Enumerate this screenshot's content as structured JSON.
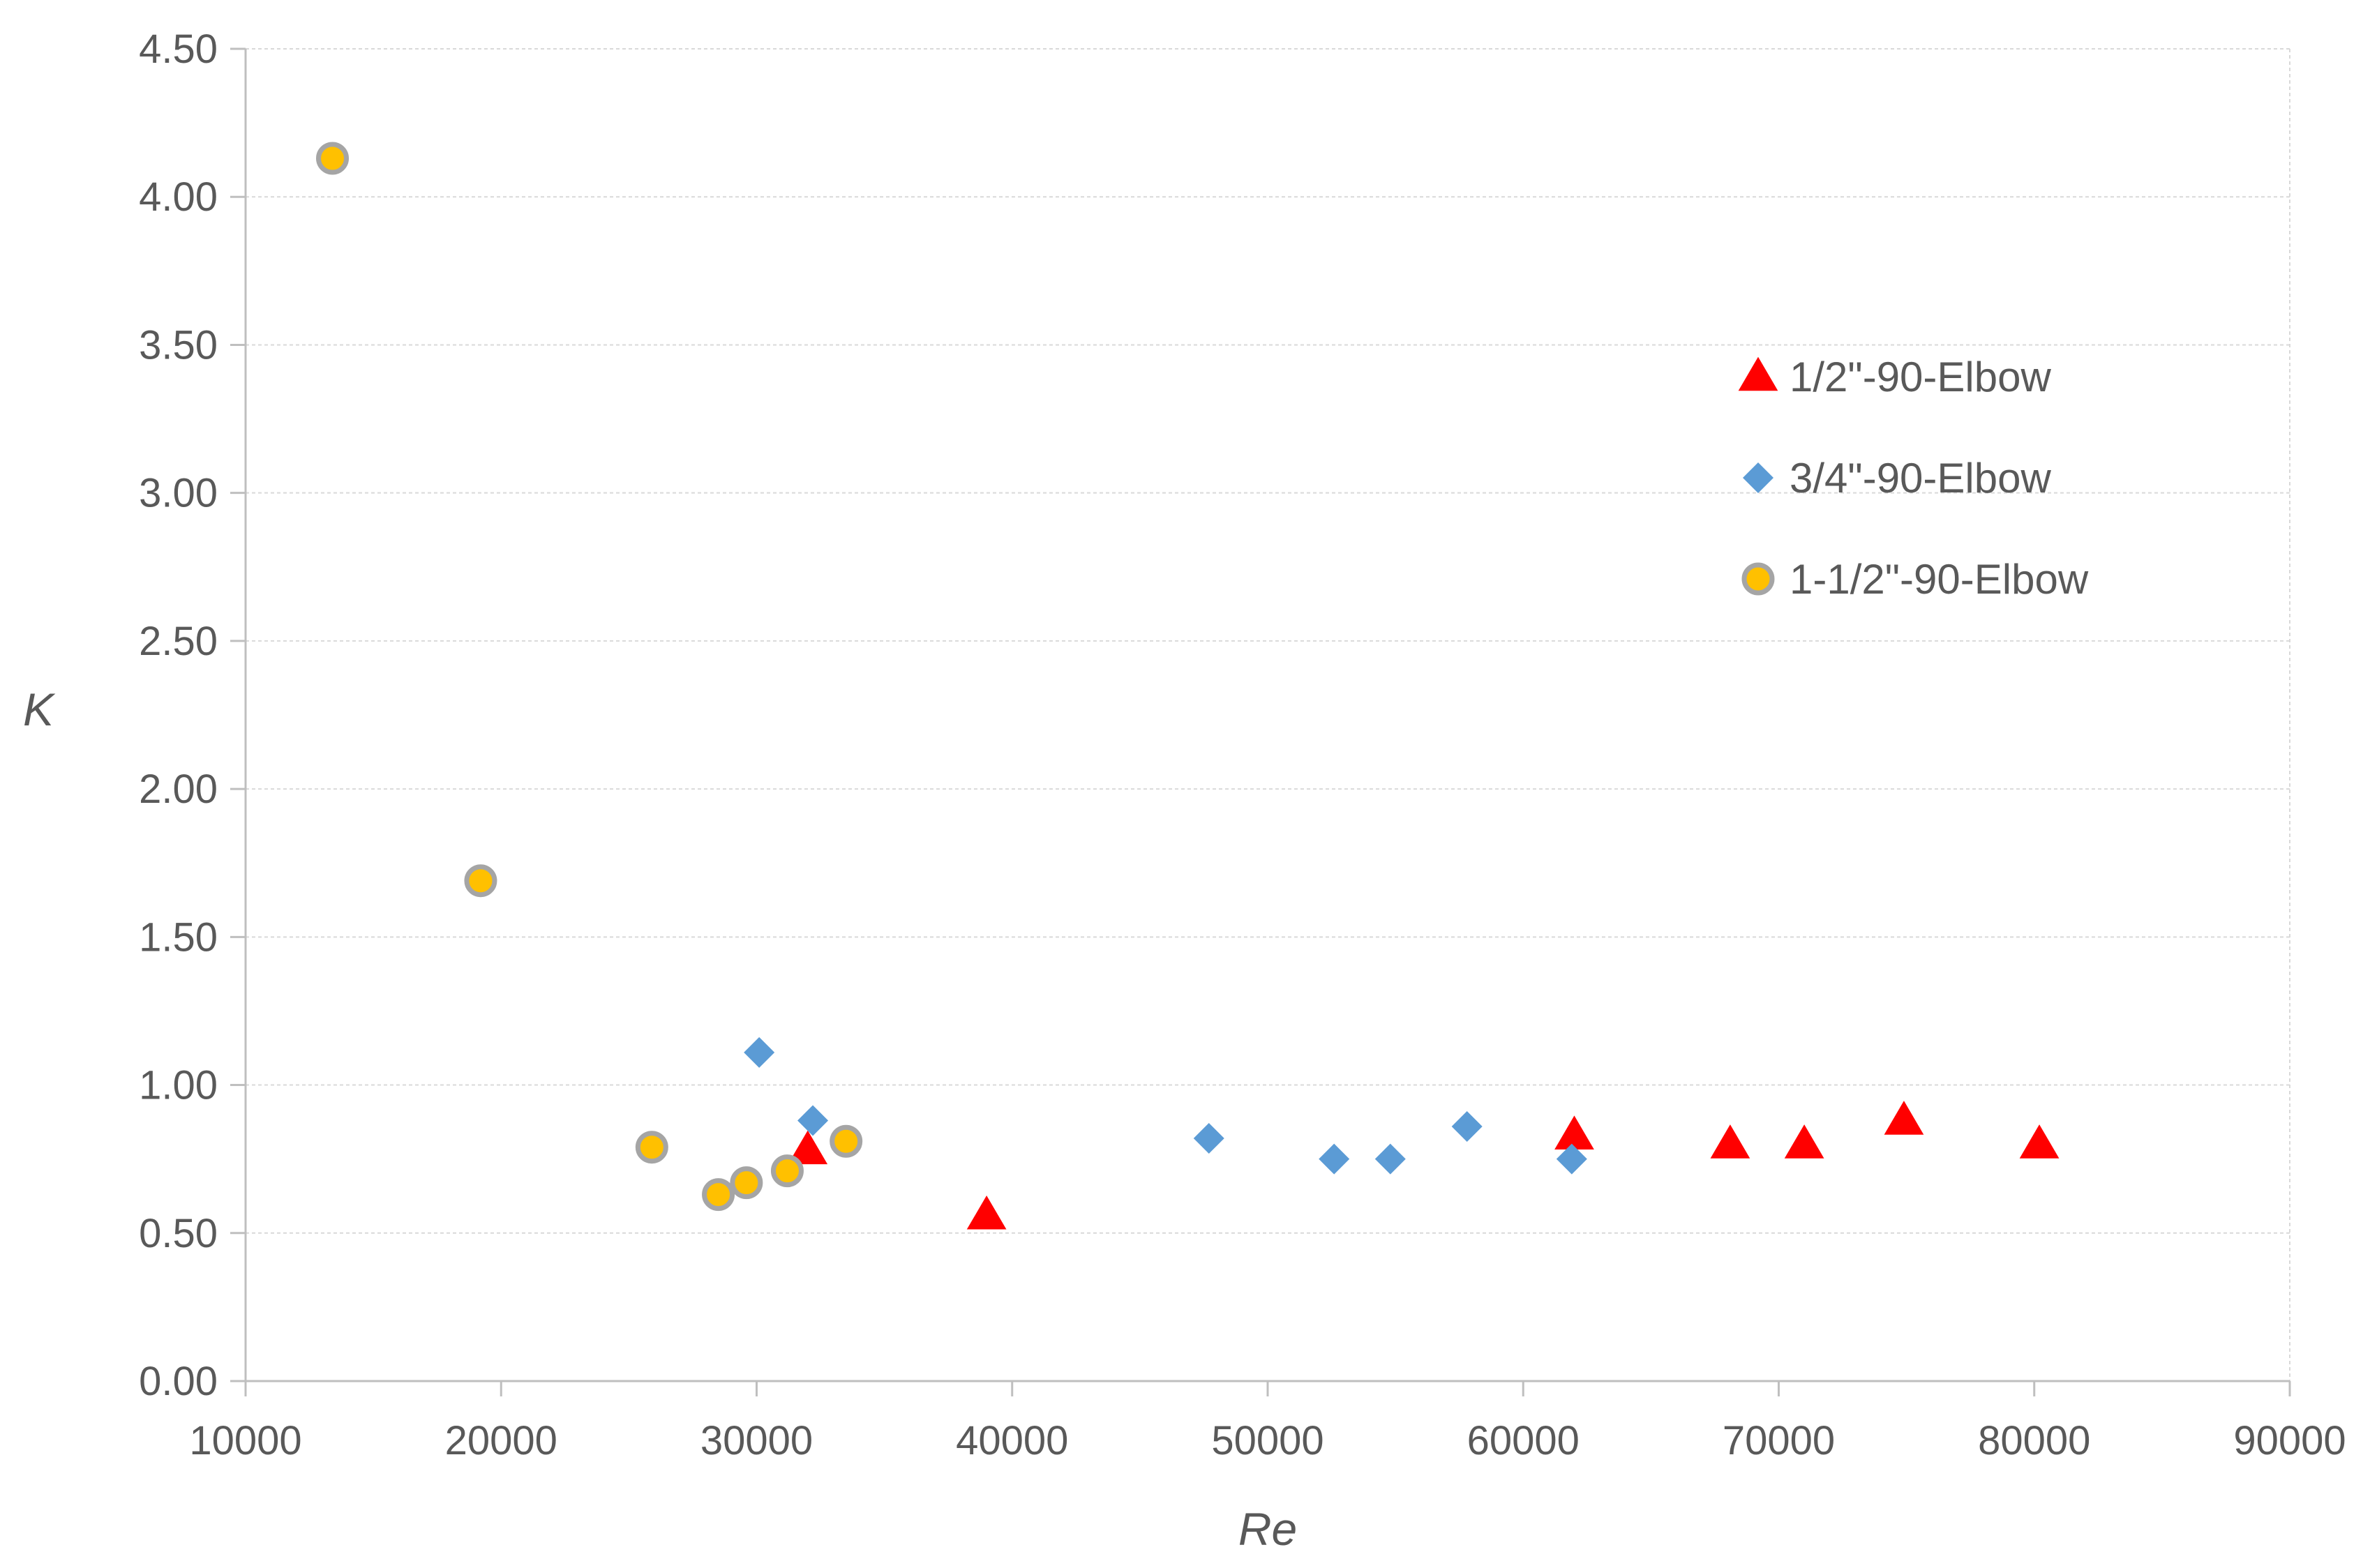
{
  "chart_data": {
    "type": "scatter",
    "title": "",
    "xlabel": "Re",
    "ylabel": "K",
    "xlim": [
      10000,
      90000
    ],
    "ylim": [
      0,
      4.5
    ],
    "x_ticks": [
      "10000",
      "20000",
      "30000",
      "40000",
      "50000",
      "60000",
      "70000",
      "80000",
      "90000"
    ],
    "y_ticks": [
      "0.00",
      "0.50",
      "1.00",
      "1.50",
      "2.00",
      "2.50",
      "3.00",
      "3.50",
      "4.00",
      "4.50"
    ],
    "x_tick_values": [
      10000,
      20000,
      30000,
      40000,
      50000,
      60000,
      70000,
      80000,
      90000
    ],
    "y_tick_values": [
      0,
      0.5,
      1.0,
      1.5,
      2.0,
      2.5,
      3.0,
      3.5,
      4.0,
      4.5
    ],
    "grid": "horizontal",
    "legend_position": "right",
    "series": [
      {
        "name": "1/2\"-90-Elbow",
        "marker": "triangle",
        "color": "#ff0000",
        "points": [
          {
            "x": 32000,
            "y": 0.78
          },
          {
            "x": 39000,
            "y": 0.56
          },
          {
            "x": 62000,
            "y": 0.83
          },
          {
            "x": 68100,
            "y": 0.8
          },
          {
            "x": 71000,
            "y": 0.8
          },
          {
            "x": 74900,
            "y": 0.88
          },
          {
            "x": 80200,
            "y": 0.8
          }
        ]
      },
      {
        "name": "3/4\"-90-Elbow",
        "marker": "diamond",
        "color": "#5b9bd5",
        "points": [
          {
            "x": 30100,
            "y": 1.11
          },
          {
            "x": 32200,
            "y": 0.88
          },
          {
            "x": 47700,
            "y": 0.82
          },
          {
            "x": 52600,
            "y": 0.75
          },
          {
            "x": 54800,
            "y": 0.75
          },
          {
            "x": 57800,
            "y": 0.86
          },
          {
            "x": 61900,
            "y": 0.75
          }
        ]
      },
      {
        "name": "1-1/2\"-90-Elbow",
        "marker": "circle",
        "color": "#ffc000",
        "stroke": "#a5a5a5",
        "points": [
          {
            "x": 13400,
            "y": 4.13
          },
          {
            "x": 19200,
            "y": 1.69
          },
          {
            "x": 25900,
            "y": 0.79
          },
          {
            "x": 28500,
            "y": 0.63
          },
          {
            "x": 29600,
            "y": 0.67
          },
          {
            "x": 31200,
            "y": 0.71
          },
          {
            "x": 33500,
            "y": 0.81
          }
        ]
      }
    ]
  }
}
